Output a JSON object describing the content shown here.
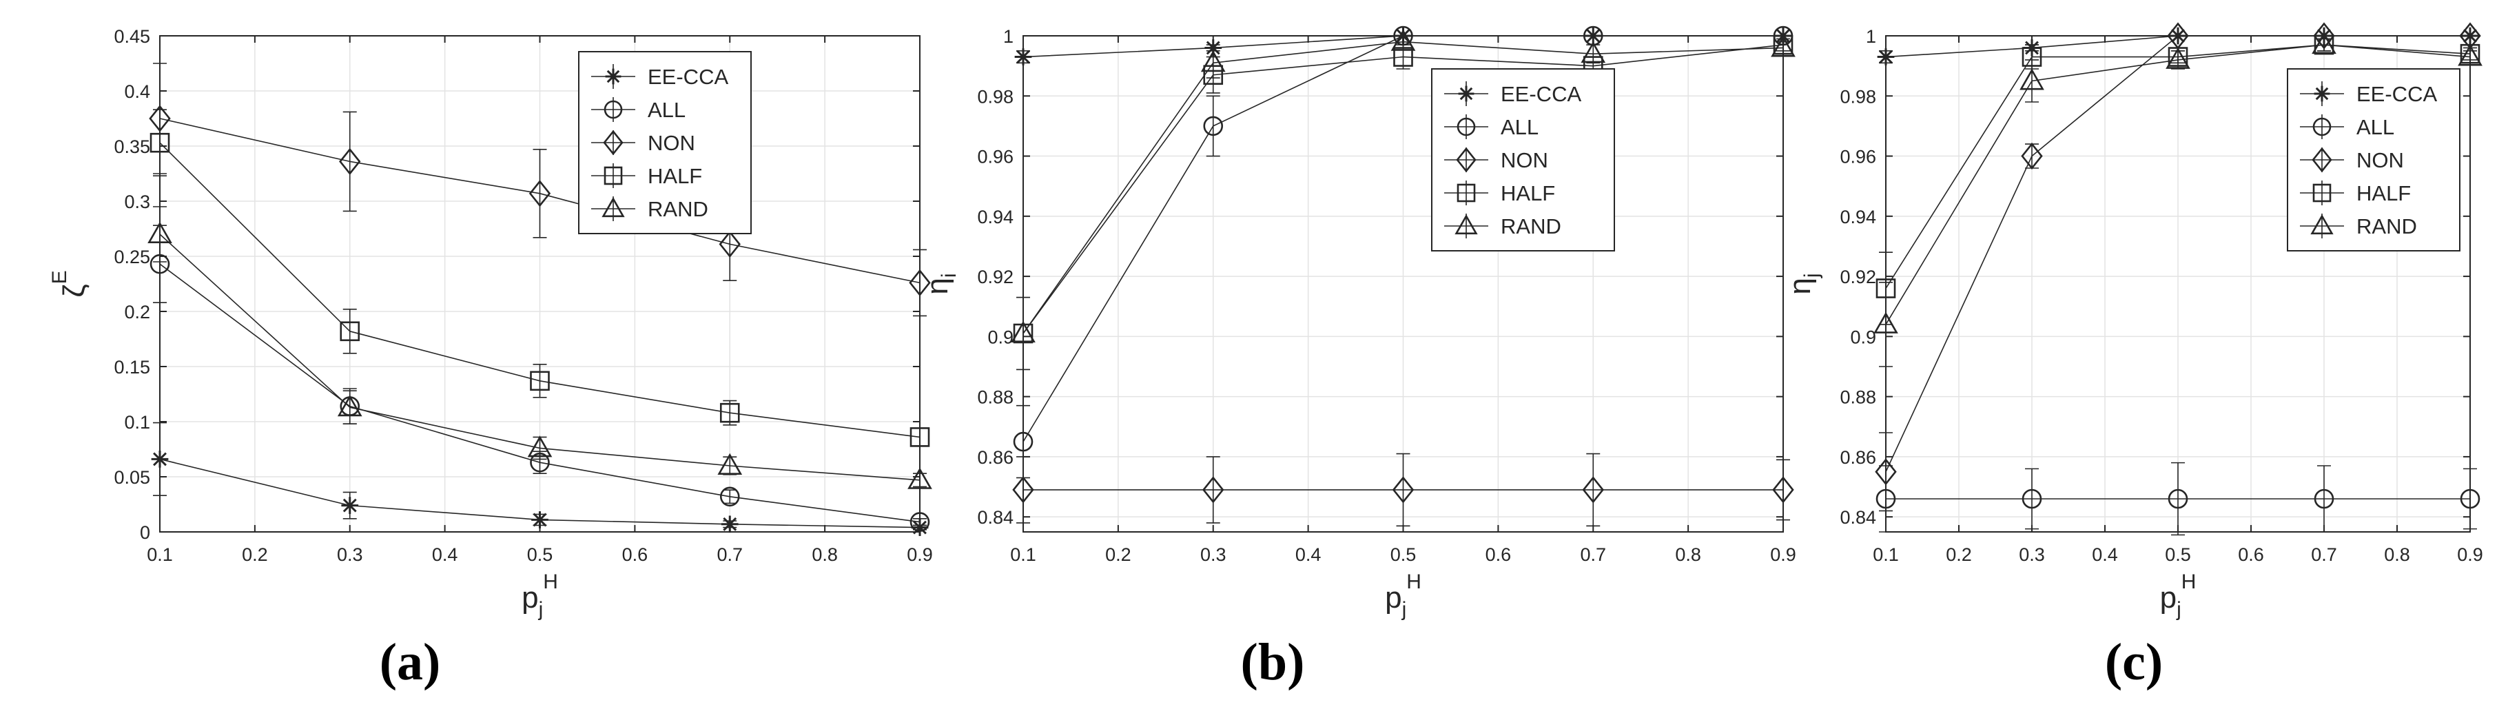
{
  "figure": {
    "panel_labels": [
      "(a)",
      "(b)",
      "(c)"
    ]
  },
  "colors": {
    "line": "#262626",
    "grid": "#e3e3e3",
    "axis": "#262626"
  },
  "chart_data": [
    {
      "type": "line",
      "xlabel": "p_j^H",
      "ylabel": "ζ^E",
      "xlim": [
        0.1,
        0.9
      ],
      "ylim": [
        0,
        0.45
      ],
      "xticks": [
        0.1,
        0.2,
        0.3,
        0.4,
        0.5,
        0.6,
        0.7,
        0.8,
        0.9
      ],
      "xtick_labels": [
        "0.1",
        "0.2",
        "0.3",
        "0.4",
        "0.5",
        "0.6",
        "0.7",
        "0.8",
        "0.9"
      ],
      "yticks": [
        0,
        0.05,
        0.1,
        0.15,
        0.2,
        0.25,
        0.3,
        0.35,
        0.4,
        0.45
      ],
      "ytick_labels": [
        "0",
        "0.05",
        "0.1",
        "0.15",
        "0.2",
        "0.25",
        "0.3",
        "0.35",
        "0.4",
        "0.45"
      ],
      "grid": true,
      "legend_position": "top-right",
      "x": [
        0.1,
        0.3,
        0.5,
        0.7,
        0.9
      ],
      "series": [
        {
          "name": "EE-CCA",
          "marker": "asterisk",
          "values": [
            0.066,
            0.024,
            0.011,
            0.007,
            0.004
          ],
          "errors": [
            0.033,
            0.012,
            0.005,
            0.003,
            0.002
          ]
        },
        {
          "name": "ALL",
          "marker": "circle",
          "values": [
            0.243,
            0.114,
            0.063,
            0.032,
            0.009
          ],
          "errors": [
            0.035,
            0.016,
            0.01,
            0.006,
            0.003
          ]
        },
        {
          "name": "NON",
          "marker": "diamond",
          "values": [
            0.375,
            0.336,
            0.307,
            0.261,
            0.226
          ],
          "errors": [
            0.05,
            0.045,
            0.04,
            0.033,
            0.03
          ]
        },
        {
          "name": "HALF",
          "marker": "square",
          "values": [
            0.353,
            0.182,
            0.137,
            0.108,
            0.086
          ],
          "errors": [
            0.03,
            0.02,
            0.015,
            0.011,
            0.008
          ]
        },
        {
          "name": "RAND",
          "marker": "triangle",
          "values": [
            0.27,
            0.113,
            0.076,
            0.06,
            0.047
          ],
          "errors": [
            0.025,
            0.015,
            0.01,
            0.008,
            0.006
          ]
        }
      ]
    },
    {
      "type": "line",
      "xlabel": "p_j^H",
      "ylabel": "η_i",
      "xlim": [
        0.1,
        0.9
      ],
      "ylim": [
        0.835,
        1.0
      ],
      "xticks": [
        0.1,
        0.2,
        0.3,
        0.4,
        0.5,
        0.6,
        0.7,
        0.8,
        0.9
      ],
      "xtick_labels": [
        "0.1",
        "0.2",
        "0.3",
        "0.4",
        "0.5",
        "0.6",
        "0.7",
        "0.8",
        "0.9"
      ],
      "yticks": [
        0.84,
        0.86,
        0.88,
        0.9,
        0.92,
        0.94,
        0.96,
        0.98,
        1.0
      ],
      "ytick_labels": [
        "0.84",
        "0.86",
        "0.88",
        "0.9",
        "0.92",
        "0.94",
        "0.96",
        "0.98",
        "1"
      ],
      "grid": true,
      "legend_position": "right",
      "x": [
        0.1,
        0.3,
        0.5,
        0.7,
        0.9
      ],
      "series": [
        {
          "name": "EE-CCA",
          "marker": "asterisk",
          "values": [
            0.993,
            0.996,
            1.0,
            1.0,
            1.0
          ],
          "errors": [
            0.002,
            0.001,
            0.0,
            0.0,
            0.0
          ]
        },
        {
          "name": "ALL",
          "marker": "circle",
          "values": [
            0.865,
            0.97,
            1.0,
            1.0,
            1.0
          ],
          "errors": [
            0.012,
            0.01,
            0.0,
            0.0,
            0.0
          ]
        },
        {
          "name": "NON",
          "marker": "diamond",
          "values": [
            0.849,
            0.849,
            0.849,
            0.849,
            0.849
          ],
          "errors": [
            0.011,
            0.011,
            0.012,
            0.012,
            0.01
          ]
        },
        {
          "name": "HALF",
          "marker": "square",
          "values": [
            0.901,
            0.987,
            0.993,
            0.99,
            0.997
          ],
          "errors": [
            0.012,
            0.006,
            0.004,
            0.003,
            0.002
          ]
        },
        {
          "name": "RAND",
          "marker": "triangle",
          "values": [
            0.901,
            0.991,
            0.998,
            0.994,
            0.996
          ],
          "errors": [
            0.012,
            0.005,
            0.002,
            0.003,
            0.002
          ]
        }
      ]
    },
    {
      "type": "line",
      "xlabel": "p_j^H",
      "ylabel": "η_j",
      "xlim": [
        0.1,
        0.9
      ],
      "ylim": [
        0.835,
        1.0
      ],
      "xticks": [
        0.1,
        0.2,
        0.3,
        0.4,
        0.5,
        0.6,
        0.7,
        0.8,
        0.9
      ],
      "xtick_labels": [
        "0.1",
        "0.2",
        "0.3",
        "0.4",
        "0.5",
        "0.6",
        "0.7",
        "0.8",
        "0.9"
      ],
      "yticks": [
        0.84,
        0.86,
        0.88,
        0.9,
        0.92,
        0.94,
        0.96,
        0.98,
        1.0
      ],
      "ytick_labels": [
        "0.84",
        "0.86",
        "0.88",
        "0.9",
        "0.92",
        "0.94",
        "0.96",
        "0.98",
        "1"
      ],
      "grid": true,
      "legend_position": "top-right",
      "x": [
        0.1,
        0.3,
        0.5,
        0.7,
        0.9
      ],
      "series": [
        {
          "name": "EE-CCA",
          "marker": "asterisk",
          "values": [
            0.993,
            0.996,
            1.0,
            1.0,
            1.0
          ],
          "errors": [
            0.002,
            0.001,
            0.0,
            0.0,
            0.0
          ]
        },
        {
          "name": "ALL",
          "marker": "circle",
          "values": [
            0.846,
            0.846,
            0.846,
            0.846,
            0.846
          ],
          "errors": [
            0.011,
            0.01,
            0.012,
            0.011,
            0.01
          ]
        },
        {
          "name": "NON",
          "marker": "diamond",
          "values": [
            0.855,
            0.96,
            1.0,
            1.0,
            1.0
          ],
          "errors": [
            0.013,
            0.004,
            0.0,
            0.0,
            0.0
          ]
        },
        {
          "name": "HALF",
          "marker": "square",
          "values": [
            0.916,
            0.993,
            0.993,
            0.997,
            0.994
          ],
          "errors": [
            0.012,
            0.004,
            0.002,
            0.002,
            0.002
          ]
        },
        {
          "name": "RAND",
          "marker": "triangle",
          "values": [
            0.904,
            0.985,
            0.992,
            0.997,
            0.993
          ],
          "errors": [
            0.014,
            0.007,
            0.003,
            0.002,
            0.002
          ]
        }
      ]
    }
  ]
}
